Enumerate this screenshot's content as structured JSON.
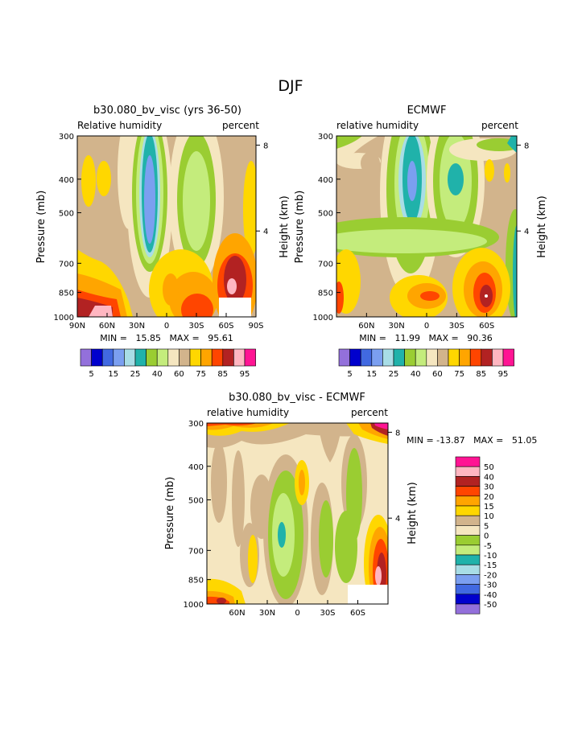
{
  "page_title": "DJF",
  "colors": {
    "contour_palette": [
      "#9370db",
      "#0000cd",
      "#4169e1",
      "#7b9ff0",
      "#a8dde6",
      "#20b2aa",
      "#9acd32",
      "#c4ec7c",
      "#f5e6c0",
      "#d2b48c",
      "#ffd700",
      "#ffa500",
      "#ff4500",
      "#b22222",
      "#ffb6c1",
      "#ff1493"
    ]
  },
  "chart_data": [
    {
      "type": "heatmap",
      "title": "b30.080_bv_visc (yrs 36-50)",
      "variable_label": "Relative humidity",
      "units_label": "percent",
      "ylabel": "Pressure (mb)",
      "y2label": "Height (km)",
      "y_ticks": [
        "300",
        "400",
        "500",
        "700",
        "850",
        "1000"
      ],
      "y2_ticks": [
        "8",
        "4"
      ],
      "x_ticks": [
        "90N",
        "60N",
        "30N",
        "0",
        "30S",
        "60S",
        "90S"
      ],
      "stats_text": "MIN =   15.85   MAX =   95.61",
      "min": 15.85,
      "max": 95.61,
      "legend_levels": [
        "5",
        "15",
        "25",
        "40",
        "60",
        "75",
        "85",
        "95"
      ]
    },
    {
      "type": "heatmap",
      "title": "ECMWF",
      "variable_label": "relative humidity",
      "units_label": "percent",
      "ylabel": "Pressure (mb)",
      "y2label": "Height (km)",
      "y_ticks": [
        "300",
        "400",
        "500",
        "700",
        "850",
        "1000"
      ],
      "y2_ticks": [
        "8",
        "4"
      ],
      "x_ticks": [
        "60N",
        "30N",
        "0",
        "30S",
        "60S"
      ],
      "stats_text": "MIN =   11.99   MAX =   90.36",
      "min": 11.99,
      "max": 90.36,
      "legend_levels": [
        "5",
        "15",
        "25",
        "40",
        "60",
        "75",
        "85",
        "95"
      ]
    },
    {
      "type": "heatmap",
      "title": "b30.080_bv_visc - ECMWF",
      "variable_label": "relative humidity",
      "units_label": "percent",
      "ylabel": "Pressure (mb)",
      "y2label": "Height (km)",
      "y_ticks": [
        "300",
        "400",
        "500",
        "700",
        "850",
        "1000"
      ],
      "y2_ticks": [
        "8",
        "4"
      ],
      "x_ticks": [
        "60N",
        "30N",
        "0",
        "30S",
        "60S"
      ],
      "stats_text": "MIN = -13.87   MAX =   51.05",
      "min": -13.87,
      "max": 51.05,
      "legend_levels": [
        "50",
        "40",
        "30",
        "20",
        "15",
        "10",
        "5",
        "0",
        "-5",
        "-10",
        "-15",
        "-20",
        "-30",
        "-40",
        "-50"
      ],
      "legend_colors": [
        "#ff1493",
        "#ffb6c1",
        "#b22222",
        "#ff4500",
        "#ffa500",
        "#ffd700",
        "#d2b48c",
        "#f5e6c0",
        "#9acd32",
        "#c4ec7c",
        "#20b2aa",
        "#a8dde6",
        "#7b9ff0",
        "#4169e1",
        "#0000cd",
        "#9370db"
      ]
    }
  ]
}
